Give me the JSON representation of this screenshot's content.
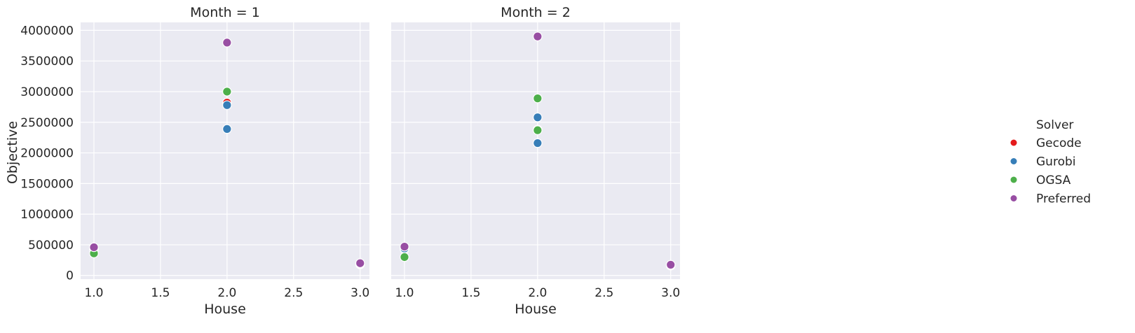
{
  "chart_data": {
    "type": "scatter",
    "ylabel": "Objective",
    "legend": {
      "title": "Solver",
      "placement": "right",
      "entries": [
        {
          "name": "Gecode",
          "color": "#e41a1c"
        },
        {
          "name": "Gurobi",
          "color": "#377eb8"
        },
        {
          "name": "OGSA",
          "color": "#4daf4a"
        },
        {
          "name": "Preferred",
          "color": "#984ea3"
        }
      ]
    },
    "xlim": [
      0.9,
      3.07
    ],
    "ylim": [
      -60000,
      4130000
    ],
    "x_ticks": [
      1.0,
      1.5,
      2.0,
      2.5,
      3.0
    ],
    "x_tick_labels": [
      "1.0",
      "1.5",
      "2.0",
      "2.5",
      "3.0"
    ],
    "y_ticks": [
      0,
      500000,
      1000000,
      1500000,
      2000000,
      2500000,
      3000000,
      3500000,
      4000000
    ],
    "y_tick_labels": [
      "0",
      "500000",
      "1000000",
      "1500000",
      "2000000",
      "2500000",
      "3000000",
      "3500000",
      "4000000"
    ],
    "grid": true,
    "panels": [
      {
        "title": "Month = 1",
        "xlabel": "House",
        "series": [
          {
            "name": "Gecode",
            "points": [
              [
                1,
                440000
              ],
              [
                2,
                2820000
              ],
              [
                3,
                180000
              ]
            ]
          },
          {
            "name": "Gurobi",
            "points": [
              [
                1,
                430000
              ],
              [
                2,
                2780000
              ],
              [
                2,
                2390000
              ],
              [
                3,
                190000
              ]
            ]
          },
          {
            "name": "OGSA",
            "points": [
              [
                1,
                360000
              ],
              [
                2,
                3000000
              ],
              [
                3,
                195000
              ]
            ]
          },
          {
            "name": "Preferred",
            "points": [
              [
                1,
                460000
              ],
              [
                2,
                3800000
              ],
              [
                3,
                200000
              ]
            ]
          }
        ]
      },
      {
        "title": "Month = 2",
        "xlabel": "House",
        "series": [
          {
            "name": "Gecode",
            "points": [
              [
                1,
                430000
              ],
              [
                2,
                2380000
              ],
              [
                3,
                160000
              ]
            ]
          },
          {
            "name": "Gurobi",
            "points": [
              [
                1,
                440000
              ],
              [
                2,
                2580000
              ],
              [
                2,
                2160000
              ],
              [
                3,
                165000
              ]
            ]
          },
          {
            "name": "OGSA",
            "points": [
              [
                1,
                300000
              ],
              [
                2,
                2890000
              ],
              [
                2,
                2370000
              ],
              [
                3,
                170000
              ]
            ]
          },
          {
            "name": "Preferred",
            "points": [
              [
                1,
                470000
              ],
              [
                2,
                3900000
              ],
              [
                3,
                175000
              ]
            ]
          }
        ]
      }
    ]
  }
}
